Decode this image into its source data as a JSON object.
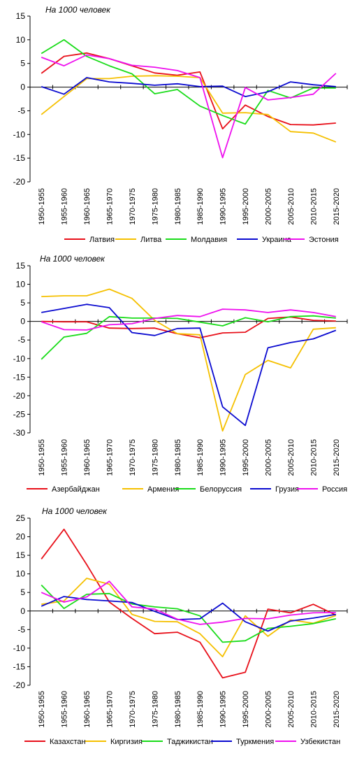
{
  "chart_data": [
    {
      "type": "line",
      "subtitle": "На 1000 человек",
      "categories": [
        "1950-1955",
        "1955-1960",
        "1960-1965",
        "1965-1970",
        "1970-1975",
        "1975-1980",
        "1980-1985",
        "1985-1990",
        "1990-1995",
        "1995-2000",
        "2000-2005",
        "2005-2010",
        "2010-2015",
        "2015-2020"
      ],
      "ylim": [
        -20,
        15
      ],
      "yticks": [
        15,
        10,
        5,
        0,
        -5,
        -10,
        -15,
        -20
      ],
      "grid": false,
      "legend_position": "bottom",
      "series": [
        {
          "name": "Латвия",
          "color": "#e8101a",
          "values": [
            2.9,
            6.5,
            7.2,
            6.0,
            4.5,
            3.0,
            2.5,
            3.2,
            -8.8,
            -3.8,
            -6.2,
            -7.9,
            -8.0,
            -7.6
          ]
        },
        {
          "name": "Литва",
          "color": "#f5c000",
          "values": [
            -5.8,
            -2.0,
            1.8,
            1.8,
            2.3,
            2.4,
            2.3,
            2.0,
            -5.5,
            -5.4,
            -5.8,
            -9.4,
            -9.7,
            -11.6
          ]
        },
        {
          "name": "Молдавия",
          "color": "#19dc19",
          "values": [
            7.1,
            10.0,
            6.5,
            4.5,
            2.8,
            -1.4,
            -0.5,
            -4.0,
            -6.0,
            -7.8,
            -0.7,
            -2.3,
            -0.2,
            -0.2
          ]
        },
        {
          "name": "Украина",
          "color": "#0a0ad0",
          "values": [
            0.1,
            -1.5,
            2.0,
            1.1,
            0.8,
            0.4,
            0.7,
            0.1,
            0.2,
            -2.0,
            -1.0,
            1.1,
            0.5,
            0.1
          ]
        },
        {
          "name": "Эстония",
          "color": "#ee10ee",
          "values": [
            6.3,
            4.5,
            6.8,
            6.0,
            4.6,
            4.2,
            3.5,
            2.0,
            -14.9,
            -0.1,
            -2.7,
            -2.2,
            -1.5,
            2.9
          ]
        }
      ]
    },
    {
      "type": "line",
      "subtitle": "На 1000 человек",
      "categories": [
        "1950-1955",
        "1955-1960",
        "1960-1965",
        "1965-1970",
        "1970-1975",
        "1975-1980",
        "1980-1985",
        "1985-1990",
        "1990-1995",
        "1995-2000",
        "2000-2005",
        "2005-2010",
        "2010-2015",
        "2015-2020"
      ],
      "ylim": [
        -30,
        15
      ],
      "yticks": [
        15,
        10,
        5,
        0,
        -5,
        -10,
        -15,
        -20,
        -25,
        -30
      ],
      "grid": false,
      "legend_position": "bottom",
      "series": [
        {
          "name": "Азербайджан",
          "color": "#e8101a",
          "values": [
            0.0,
            -0.1,
            -0.1,
            -1.8,
            -1.9,
            -1.8,
            -3.3,
            -4.4,
            -3.1,
            -2.9,
            0.8,
            1.2,
            0.3,
            0.1
          ]
        },
        {
          "name": "Армения",
          "color": "#f5c000",
          "values": [
            6.7,
            6.9,
            6.9,
            8.7,
            6.2,
            0.3,
            -3.3,
            -3.6,
            -29.5,
            -14.3,
            -10.5,
            -12.5,
            -2.1,
            -1.7
          ]
        },
        {
          "name": "Белоруссия",
          "color": "#19dc19",
          "values": [
            -10.2,
            -4.2,
            -3.2,
            1.3,
            0.9,
            0.9,
            0.8,
            -0.2,
            -1.2,
            1.0,
            -0.1,
            1.3,
            1.5,
            0.9
          ]
        },
        {
          "name": "Грузия",
          "color": "#0a0ad0",
          "values": [
            2.4,
            3.5,
            4.6,
            3.7,
            -3.0,
            -3.8,
            -1.9,
            -1.8,
            -23.0,
            -28.0,
            -7.1,
            -5.7,
            -4.7,
            -2.4
          ]
        },
        {
          "name": "Россия",
          "color": "#ee10ee",
          "values": [
            -0.1,
            -2.2,
            -2.3,
            -0.9,
            -0.6,
            0.8,
            1.6,
            1.3,
            3.3,
            3.1,
            2.4,
            3.1,
            2.4,
            1.3
          ]
        }
      ]
    },
    {
      "type": "line",
      "subtitle": "На 1000 человек",
      "categories": [
        "1950-1955",
        "1955-1960",
        "1960-1965",
        "1965-1970",
        "1970-1975",
        "1975-1980",
        "1980-1985",
        "1985-1990",
        "1990-1995",
        "1995-2000",
        "2000-2005",
        "2005-2010",
        "2010-2015",
        "2015-2020"
      ],
      "ylim": [
        -20,
        25
      ],
      "yticks": [
        25,
        20,
        15,
        10,
        5,
        0,
        -5,
        -10,
        -15,
        -20
      ],
      "grid": false,
      "legend_position": "bottom",
      "series": [
        {
          "name": "Казахстан",
          "color": "#e8101a",
          "values": [
            14.0,
            22.0,
            12.5,
            2.4,
            -2.0,
            -6.1,
            -5.7,
            -8.4,
            -18.0,
            -16.5,
            0.5,
            -0.5,
            1.8,
            -1.1
          ]
        },
        {
          "name": "Киргизия",
          "color": "#f5c000",
          "values": [
            1.8,
            2.7,
            8.8,
            7.2,
            -0.9,
            -2.8,
            -2.9,
            -6.1,
            -12.3,
            -1.3,
            -6.8,
            -2.4,
            -3.3,
            -1.2
          ]
        },
        {
          "name": "Таджикистан",
          "color": "#19dc19",
          "values": [
            7.0,
            0.7,
            4.5,
            4.7,
            1.9,
            1.1,
            0.6,
            -1.3,
            -8.4,
            -8.0,
            -4.7,
            -4.1,
            -3.4,
            -2.1
          ]
        },
        {
          "name": "Туркмения",
          "color": "#0a0ad0",
          "values": [
            1.3,
            3.9,
            3.1,
            2.7,
            2.3,
            -0.1,
            -2.3,
            -2.1,
            2.1,
            -2.9,
            -5.4,
            -2.7,
            -1.9,
            -0.9
          ]
        },
        {
          "name": "Узбекистан",
          "color": "#ee10ee",
          "values": [
            5.0,
            2.4,
            3.8,
            8.0,
            1.1,
            0.5,
            -2.2,
            -3.6,
            -3.0,
            -2.0,
            -2.1,
            -1.1,
            -0.5,
            -0.4
          ]
        }
      ]
    }
  ]
}
